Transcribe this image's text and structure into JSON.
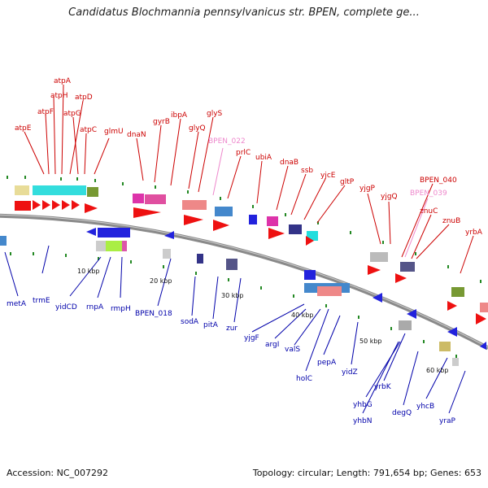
{
  "title": "Candidatus Blochmannia pennsylvanicus str. BPEN, complete ge...",
  "footer": {
    "accession": "Accession: NC_007292",
    "topology": "Topology: circular; Length: 791,654 bp; Genes: 653"
  },
  "colors": {
    "forward_label": "#cc0000",
    "reverse_label": "#0000aa",
    "pseudo_label": "#ee88cc",
    "backbone": "#8a8a8a",
    "tick": "#228822"
  },
  "kbp_labels": [
    "10 kbp",
    "20 kbp",
    "30 kbp",
    "40 kbp",
    "50 kbp",
    "60 kbp"
  ],
  "labels_top": [
    "atpA",
    "atpH",
    "atpF",
    "atpD",
    "atpG",
    "atpE",
    "atpC",
    "glmU",
    "dnaN",
    "gyrB",
    "ibpA",
    "glyQ",
    "glyS",
    "BPEN_022",
    "prlC",
    "ubiA",
    "dnaB",
    "ssb",
    "yjcE",
    "gltP",
    "yjgP",
    "yjgQ",
    "BPEN_040",
    "BPEN_039",
    "znuC",
    "znuB",
    "yrbA"
  ],
  "labels_bottom": [
    "metA",
    "trmE",
    "yidCD",
    "rnpA",
    "rmpH",
    "BPEN_018",
    "sodA",
    "pitA",
    "zur",
    "yjgF",
    "argI",
    "valS",
    "holC",
    "pepA",
    "yidZ",
    "yrbK",
    "yhbG",
    "yhbN",
    "degQ",
    "yhcB",
    "yraP"
  ]
}
